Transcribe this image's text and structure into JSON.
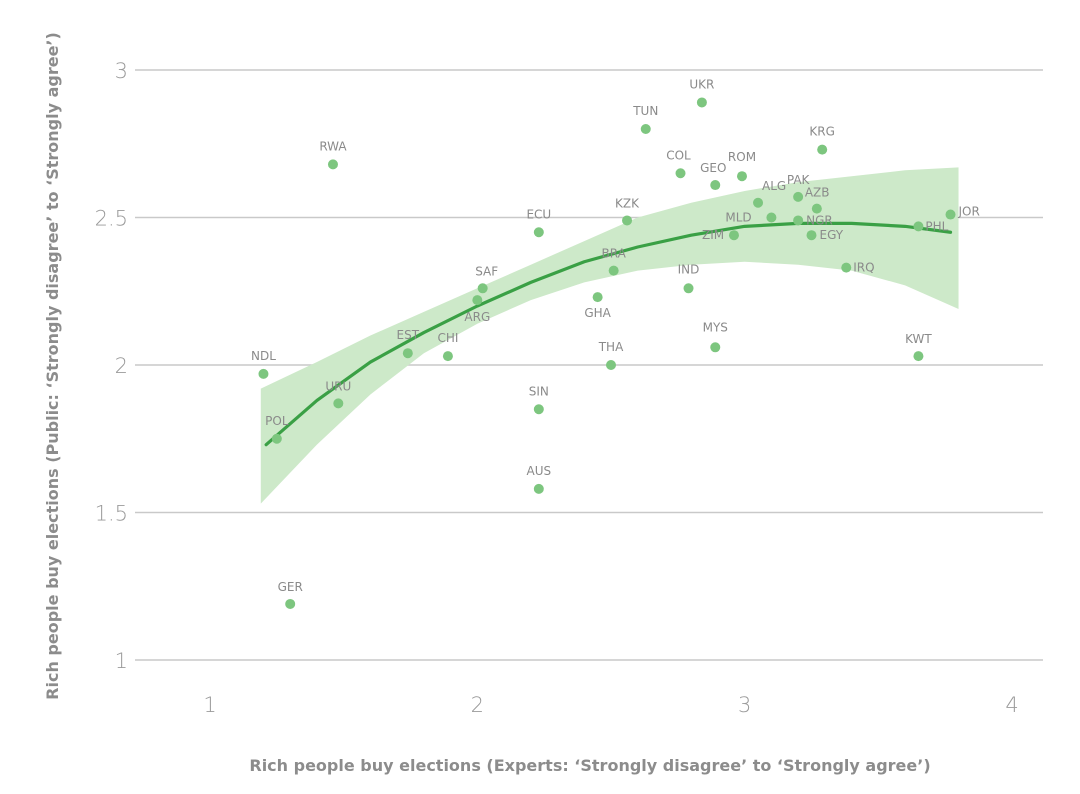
{
  "chart_data": {
    "type": "scatter",
    "xlabel": "Rich people buy elections (Experts: ‘Strongly disagree’ to ‘Strongly agree’)",
    "ylabel": "Rich people buy elections (Public: ‘Strongly disagree’ to ‘Strongly agree’)",
    "xlim": [
      0.73,
      4.12
    ],
    "ylim": [
      0.95,
      3.05
    ],
    "x_ticks": [
      "1",
      "2",
      "3",
      "4"
    ],
    "x_tick_values": [
      1,
      2,
      3,
      4
    ],
    "y_ticks": [
      "1",
      "1.5",
      "2",
      "2.5",
      "3"
    ],
    "y_tick_values": [
      1,
      1.5,
      2,
      2.5,
      3
    ],
    "grid": "horizontal",
    "colors": {
      "point": "#7dc67f",
      "fit_line": "#3aa045",
      "band": "#cde9c9",
      "grid": "#c9c9c9"
    },
    "points": [
      {
        "label": "NDL",
        "x": 1.2,
        "y": 1.97
      },
      {
        "label": "POL",
        "x": 1.25,
        "y": 1.75
      },
      {
        "label": "GER",
        "x": 1.3,
        "y": 1.19
      },
      {
        "label": "RWA",
        "x": 1.46,
        "y": 2.68
      },
      {
        "label": "URU",
        "x": 1.48,
        "y": 1.87
      },
      {
        "label": "EST",
        "x": 1.74,
        "y": 2.04
      },
      {
        "label": "CHI",
        "x": 1.89,
        "y": 2.03
      },
      {
        "label": "SAF",
        "x": 2.02,
        "y": 2.26
      },
      {
        "label": "ARG",
        "x": 2.0,
        "y": 2.22
      },
      {
        "label": "ECU",
        "x": 2.23,
        "y": 2.45
      },
      {
        "label": "SIN",
        "x": 2.23,
        "y": 1.85
      },
      {
        "label": "AUS",
        "x": 2.23,
        "y": 1.58
      },
      {
        "label": "GHA",
        "x": 2.45,
        "y": 2.23
      },
      {
        "label": "THA",
        "x": 2.5,
        "y": 2.0
      },
      {
        "label": "BRA",
        "x": 2.51,
        "y": 2.32
      },
      {
        "label": "KZK",
        "x": 2.56,
        "y": 2.49
      },
      {
        "label": "TUN",
        "x": 2.63,
        "y": 2.8
      },
      {
        "label": "COL",
        "x": 2.76,
        "y": 2.65
      },
      {
        "label": "IND",
        "x": 2.79,
        "y": 2.26
      },
      {
        "label": "UKR",
        "x": 2.84,
        "y": 2.89
      },
      {
        "label": "GEO",
        "x": 2.89,
        "y": 2.61
      },
      {
        "label": "MYS",
        "x": 2.89,
        "y": 2.06
      },
      {
        "label": "ZIM",
        "x": 2.96,
        "y": 2.44
      },
      {
        "label": "ROM",
        "x": 2.99,
        "y": 2.64
      },
      {
        "label": "ALG",
        "x": 3.05,
        "y": 2.55
      },
      {
        "label": "MLD",
        "x": 3.1,
        "y": 2.5
      },
      {
        "label": "PAK",
        "x": 3.2,
        "y": 2.57
      },
      {
        "label": "NGR",
        "x": 3.2,
        "y": 2.49
      },
      {
        "label": "EGY",
        "x": 3.25,
        "y": 2.44
      },
      {
        "label": "AZB",
        "x": 3.27,
        "y": 2.53
      },
      {
        "label": "KRG",
        "x": 3.29,
        "y": 2.73
      },
      {
        "label": "IRQ",
        "x": 3.38,
        "y": 2.33
      },
      {
        "label": "KWT",
        "x": 3.65,
        "y": 2.03
      },
      {
        "label": "PHL",
        "x": 3.65,
        "y": 2.47
      },
      {
        "label": "JOR",
        "x": 3.77,
        "y": 2.51
      }
    ],
    "fit_line": [
      [
        1.21,
        1.73
      ],
      [
        1.4,
        1.88
      ],
      [
        1.6,
        2.01
      ],
      [
        1.8,
        2.11
      ],
      [
        2.0,
        2.2
      ],
      [
        2.2,
        2.28
      ],
      [
        2.4,
        2.35
      ],
      [
        2.6,
        2.4
      ],
      [
        2.8,
        2.44
      ],
      [
        3.0,
        2.47
      ],
      [
        3.2,
        2.48
      ],
      [
        3.4,
        2.48
      ],
      [
        3.6,
        2.47
      ],
      [
        3.77,
        2.45
      ]
    ],
    "band_upper": [
      [
        1.19,
        1.92
      ],
      [
        1.4,
        2.01
      ],
      [
        1.6,
        2.1
      ],
      [
        1.8,
        2.18
      ],
      [
        2.0,
        2.26
      ],
      [
        2.2,
        2.34
      ],
      [
        2.4,
        2.42
      ],
      [
        2.6,
        2.5
      ],
      [
        2.8,
        2.55
      ],
      [
        3.0,
        2.59
      ],
      [
        3.2,
        2.62
      ],
      [
        3.4,
        2.64
      ],
      [
        3.6,
        2.66
      ],
      [
        3.8,
        2.67
      ]
    ],
    "band_lower": [
      [
        1.19,
        1.53
      ],
      [
        1.4,
        1.73
      ],
      [
        1.6,
        1.9
      ],
      [
        1.8,
        2.04
      ],
      [
        2.0,
        2.14
      ],
      [
        2.2,
        2.22
      ],
      [
        2.4,
        2.28
      ],
      [
        2.6,
        2.32
      ],
      [
        2.8,
        2.34
      ],
      [
        3.0,
        2.35
      ],
      [
        3.2,
        2.34
      ],
      [
        3.4,
        2.32
      ],
      [
        3.6,
        2.27
      ],
      [
        3.8,
        2.19
      ]
    ]
  }
}
